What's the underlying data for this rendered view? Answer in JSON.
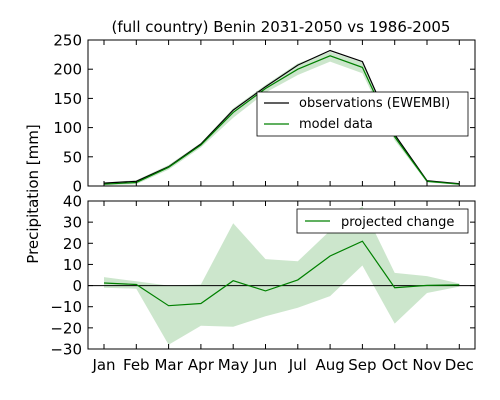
{
  "chart_data": [
    {
      "type": "area",
      "title": "(full country) Benin 2031-2050 vs 1986-2005",
      "ylabel": "Precipitation [mm]",
      "categories": [
        "Jan",
        "Feb",
        "Mar",
        "Apr",
        "May",
        "Jun",
        "Jul",
        "Aug",
        "Sep",
        "Oct",
        "Nov",
        "Dec"
      ],
      "ylim": [
        0,
        250
      ],
      "yticks": [
        "0",
        "50",
        "100",
        "150",
        "200",
        "250"
      ],
      "legend_position": "right",
      "series": [
        {
          "name": "observations (EWEMBI)",
          "color": "#000000",
          "values": [
            5,
            8,
            33,
            72,
            130,
            170,
            207,
            232,
            213,
            88,
            9,
            4
          ]
        },
        {
          "name": "model data",
          "color": "#008000",
          "values": [
            3,
            6,
            32,
            70,
            126,
            167,
            200,
            223,
            203,
            84,
            8,
            3
          ],
          "band_lower": [
            1,
            3,
            28,
            66,
            117,
            160,
            190,
            213,
            193,
            78,
            6,
            2
          ],
          "band_upper": [
            6,
            10,
            36,
            74,
            133,
            173,
            210,
            230,
            212,
            90,
            10,
            4
          ]
        }
      ]
    },
    {
      "type": "area",
      "title": "",
      "categories": [
        "Jan",
        "Feb",
        "Mar",
        "Apr",
        "May",
        "Jun",
        "Jul",
        "Aug",
        "Sep",
        "Oct",
        "Nov",
        "Dec"
      ],
      "ylim": [
        -30,
        40
      ],
      "yticks": [
        "−30",
        "−20",
        "−10",
        "0",
        "10",
        "20",
        "30",
        "40"
      ],
      "legend_position": "top-right",
      "zero_line": true,
      "series": [
        {
          "name": "projected change",
          "color": "#008000",
          "values": [
            1.2,
            0.5,
            -9.5,
            -8.5,
            2.3,
            -2.5,
            2.7,
            14,
            21,
            -1,
            0.1,
            0.3
          ],
          "band_lower": [
            -1,
            -1.5,
            -28,
            -19,
            -19.5,
            -14.5,
            -10.5,
            -5,
            9.5,
            -18,
            -3.5,
            -0.5
          ],
          "band_upper": [
            4,
            2,
            0,
            0.5,
            29.5,
            12.5,
            11.5,
            26,
            37.5,
            6,
            4.5,
            1
          ]
        }
      ]
    }
  ]
}
